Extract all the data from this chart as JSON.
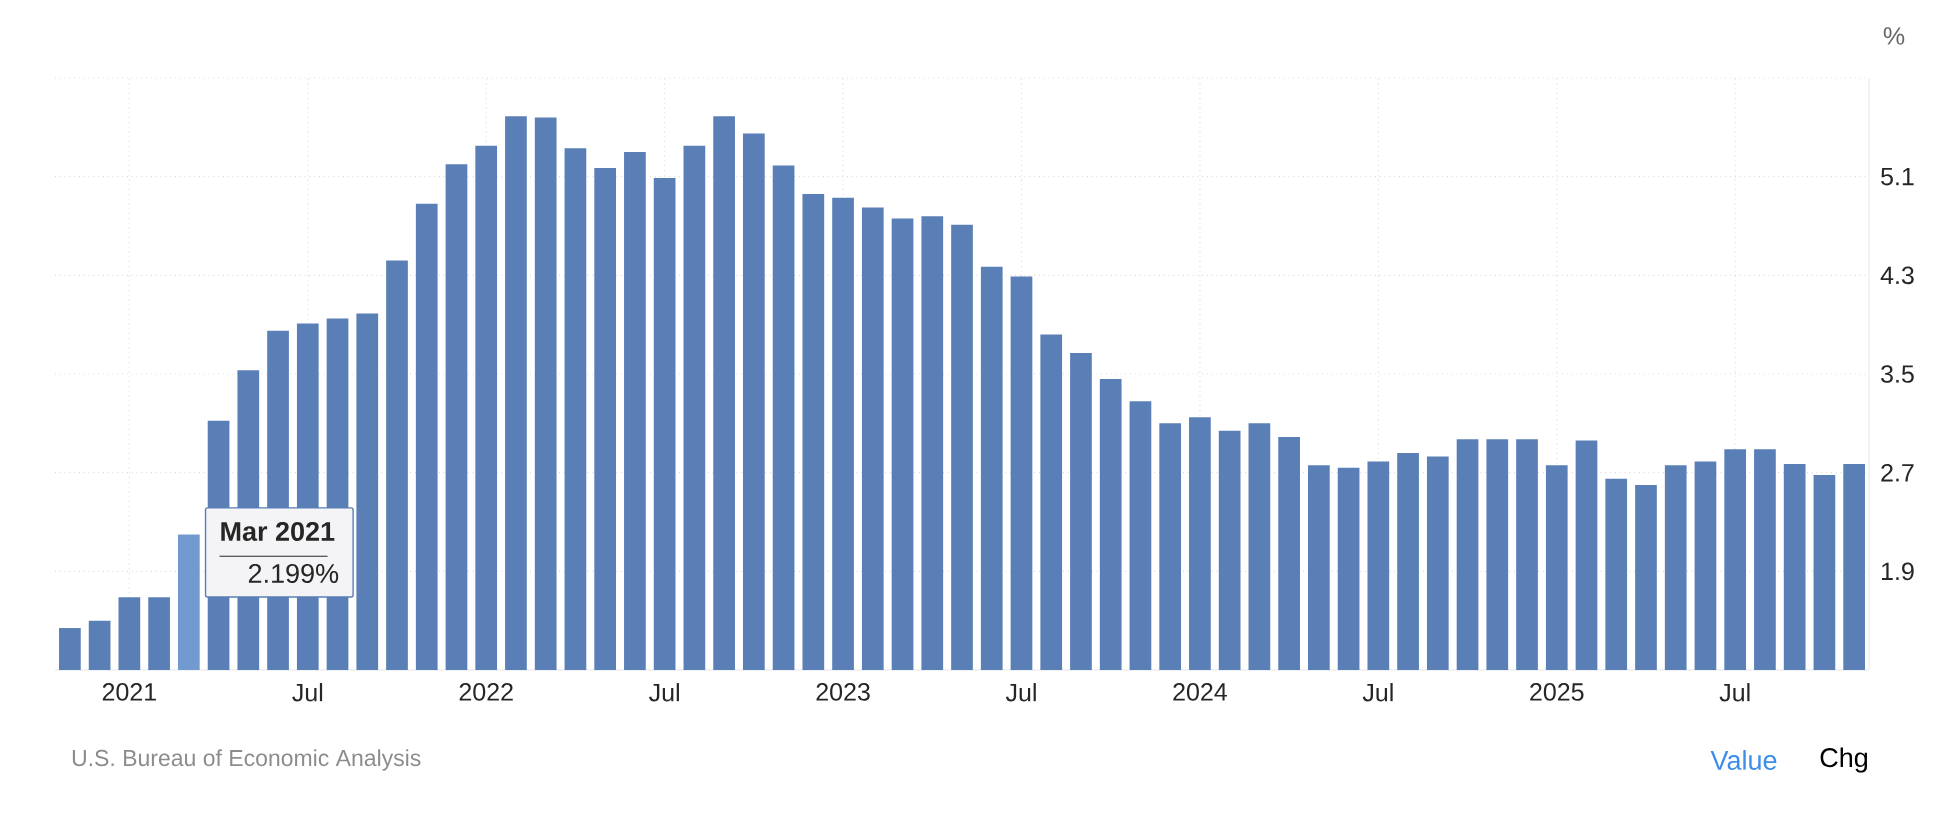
{
  "chart_data": {
    "type": "bar",
    "ylabel": "%",
    "categories": [
      null,
      null,
      "2021",
      null,
      null,
      null,
      null,
      null,
      "Jul",
      null,
      null,
      null,
      null,
      null,
      "2022",
      null,
      null,
      null,
      null,
      null,
      "Jul",
      null,
      null,
      null,
      null,
      null,
      "2023",
      null,
      null,
      null,
      null,
      null,
      "Jul",
      null,
      null,
      null,
      null,
      null,
      "2024",
      null,
      null,
      null,
      null,
      null,
      "Jul",
      null,
      null,
      null,
      null,
      null,
      "2025",
      null,
      null,
      null,
      null,
      null,
      "Jul",
      null,
      null,
      null,
      null
    ],
    "values": [
      1.44,
      1.5,
      1.69,
      1.69,
      2.199,
      3.12,
      3.53,
      3.85,
      3.91,
      3.95,
      3.99,
      4.42,
      4.88,
      5.2,
      5.35,
      5.59,
      5.58,
      5.33,
      5.17,
      5.3,
      5.09,
      5.35,
      5.59,
      5.45,
      5.19,
      4.96,
      4.93,
      4.85,
      4.76,
      4.78,
      4.71,
      4.37,
      4.29,
      3.82,
      3.67,
      3.46,
      3.28,
      3.1,
      3.15,
      3.04,
      3.1,
      2.99,
      2.76,
      2.74,
      2.79,
      2.86,
      2.83,
      2.97,
      2.97,
      2.97,
      2.76,
      2.96,
      2.65,
      2.6,
      2.76,
      2.79,
      2.89,
      2.89,
      2.77,
      2.68,
      2.77
    ],
    "colors": [
      "#5a7fb6",
      "#5a7fb6",
      "#5a7fb6",
      "#5a7fb6",
      "#7399d1",
      "#5a7fb6",
      "#5a7fb6",
      "#5a7fb6",
      "#5a7fb6",
      "#5a7fb6",
      "#5a7fb6",
      "#5a7fb6",
      "#5a7fb6",
      "#5a7fb6",
      "#5a7fb6",
      "#5a7fb6",
      "#5a7fb6",
      "#5a7fb6",
      "#5a7fb6",
      "#5a7fb6",
      "#5a7fb6",
      "#5a7fb6",
      "#5a7fb6",
      "#5a7fb6",
      "#5a7fb6",
      "#5a7fb6",
      "#5a7fb6",
      "#5a7fb6",
      "#5a7fb6",
      "#5a7fb6",
      "#5a7fb6",
      "#5a7fb6",
      "#5a7fb6",
      "#5a7fb6",
      "#5a7fb6",
      "#5a7fb6",
      "#5a7fb6",
      "#5a7fb6",
      "#5a7fb6",
      "#5a7fb6",
      "#5a7fb6",
      "#5a7fb6",
      "#5a7fb6",
      "#5a7fb6",
      "#5a7fb6",
      "#5a7fb6",
      "#5a7fb6",
      "#5a7fb6",
      "#5a7fb6",
      "#5a7fb6",
      "#5a7fb6",
      "#5a7fb6",
      "#5a7fb6",
      "#5a7fb6",
      "#5a7fb6",
      "#5a7fb6",
      "#5a7fb6",
      "#5a7fb6",
      "#5a7fb6",
      "#5a7fb6",
      "#5a7fb6"
    ],
    "ylim": [
      1.1,
      5.9
    ],
    "yticks": [
      1.9,
      2.7,
      3.5,
      4.3,
      5.1,
      {
        "value": 5.9,
        "label": null
      }
    ],
    "grid": true,
    "annotations": [
      "Mar 2021",
      "2.199%",
      "U.S. Bureau of Economic Analysis",
      "Value",
      "Chg"
    ]
  }
}
